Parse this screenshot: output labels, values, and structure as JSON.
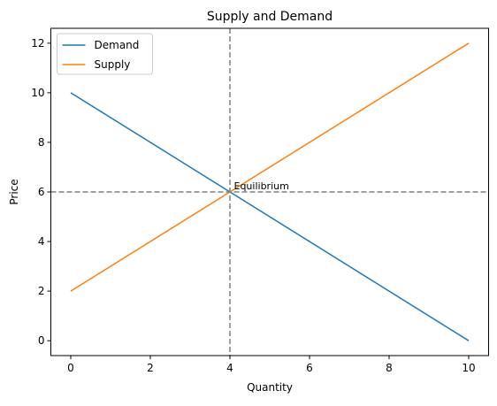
{
  "chart_data": {
    "type": "line",
    "title": "Supply and Demand",
    "x_label": "Quantity",
    "y_label": "Price",
    "x": [
      0,
      10
    ],
    "series": [
      {
        "name": "Demand",
        "color": "#1f77b4",
        "values": [
          10,
          0
        ]
      },
      {
        "name": "Supply",
        "color": "#ff7f0e",
        "values": [
          2,
          12
        ]
      }
    ],
    "xlim": [
      -0.5,
      10.5
    ],
    "xticks": [
      0,
      2,
      4,
      6,
      8,
      10
    ],
    "ylim": [
      -0.6,
      12.6
    ],
    "yticks": [
      0,
      2,
      4,
      6,
      8,
      10,
      12
    ],
    "reference_lines": {
      "x": 4,
      "y": 6,
      "color": "#808080"
    },
    "annotation": {
      "text": "Equilibrium",
      "x": 4.1,
      "y": 6.1
    },
    "legend": "upper left",
    "grid": false
  }
}
